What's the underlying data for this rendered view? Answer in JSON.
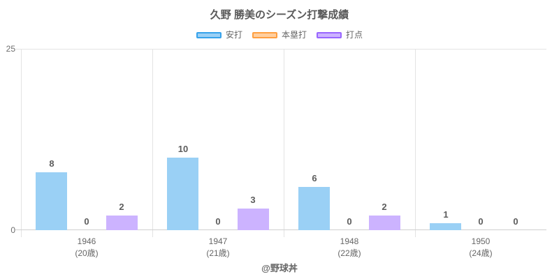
{
  "header": {
    "title": "久野 勝美のシーズン打撃成績"
  },
  "footer": {
    "credit": "@野球丼"
  },
  "chart_data": {
    "type": "bar",
    "title": "久野 勝美のシーズン打撃成績",
    "categories": [
      "1946",
      "1947",
      "1948",
      "1950"
    ],
    "category_sublabels": [
      "(20歳)",
      "(21歳)",
      "(22歳)",
      "(24歳)"
    ],
    "series": [
      {
        "name": "安打",
        "values": [
          8,
          10,
          6,
          1
        ],
        "fill": "#9ad0f5",
        "border": "#36a2eb"
      },
      {
        "name": "本塁打",
        "values": [
          0,
          0,
          0,
          0
        ],
        "fill": "#ffcf9f",
        "border": "#ff9f40"
      },
      {
        "name": "打点",
        "values": [
          2,
          3,
          2,
          0
        ],
        "fill": "#ccb3ff",
        "border": "#9966ff"
      }
    ],
    "ylim": [
      0,
      25
    ],
    "y_ticks": [
      0,
      25
    ],
    "xlabel": "",
    "ylabel": "",
    "legend_position": "top",
    "grid": "vertical-category-boundaries-and-top-bottom",
    "data_labels": true,
    "background": "#ffffff"
  }
}
